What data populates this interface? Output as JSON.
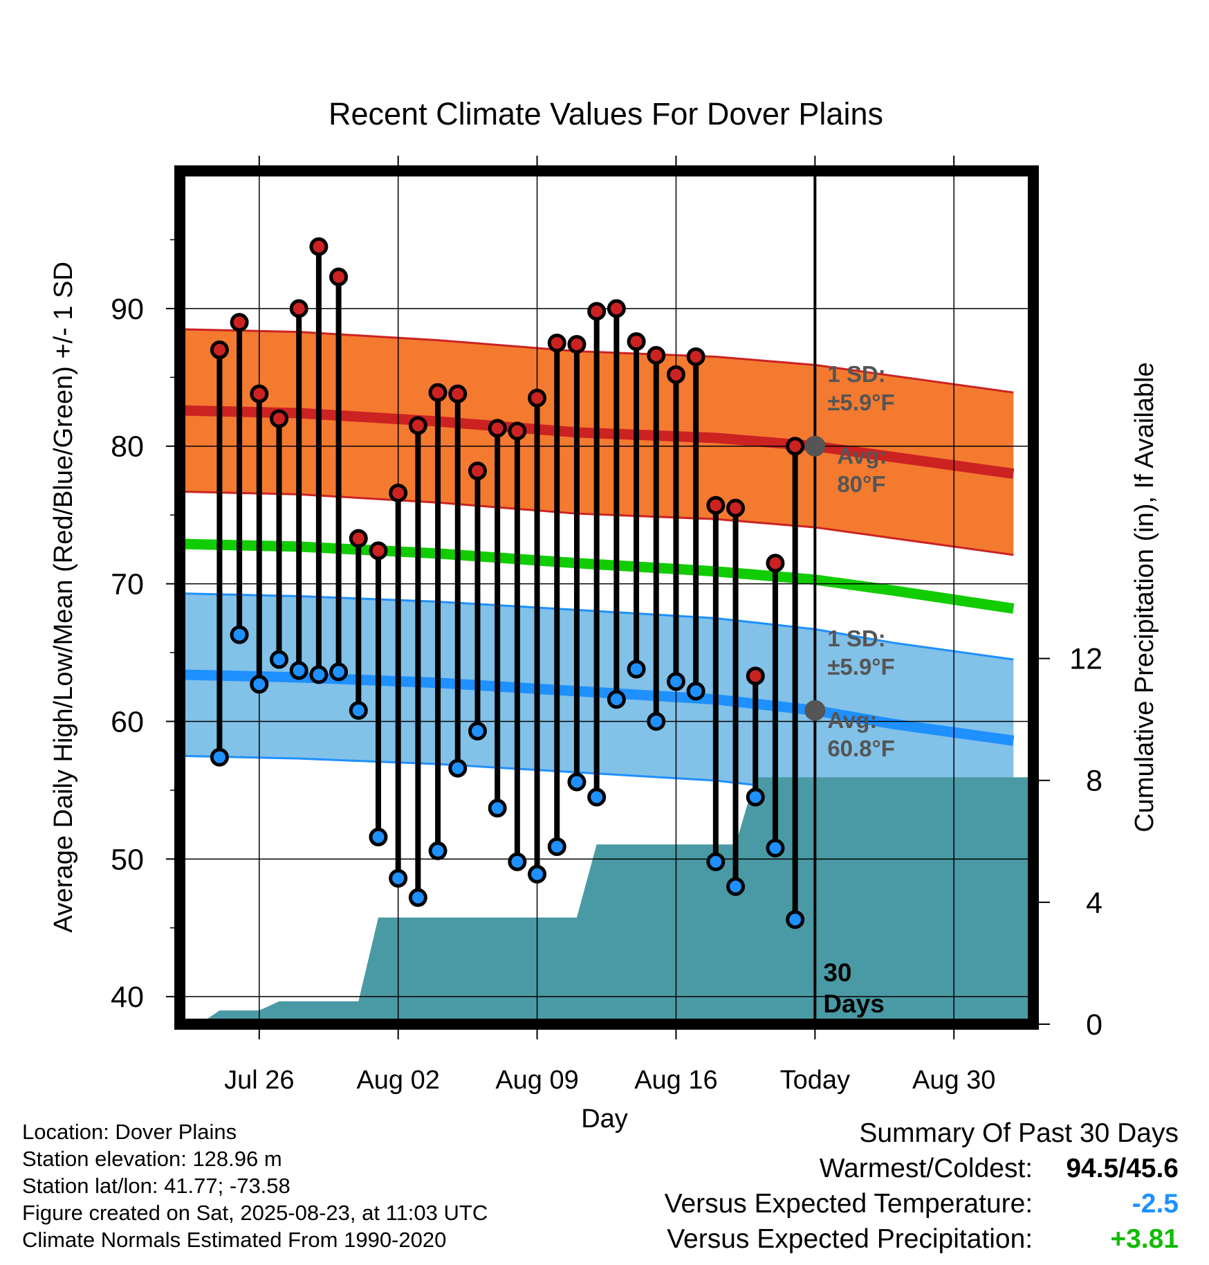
{
  "chart_data": {
    "type": "line",
    "title": "Recent Climate Values For Dover Plains",
    "xlabel": "Day",
    "ylabel": "Average Daily High/Low/Mean (Red/Blue/Green) +/- 1 SD",
    "y2label": "Cumulative Precipitation (in), If Available",
    "x_ticks": [
      "Jul 26",
      "Aug 02",
      "Aug 09",
      "Aug 16",
      "Today",
      "Aug 30"
    ],
    "x_tick_dates": [
      "2025-07-26",
      "2025-08-02",
      "2025-08-09",
      "2025-08-16",
      "2025-08-23",
      "2025-08-30"
    ],
    "x_range": [
      "2025-07-22",
      "2025-09-03"
    ],
    "ylim": [
      38,
      100
    ],
    "y_ticks": [
      40,
      50,
      60,
      70,
      80,
      90
    ],
    "y2lim": [
      0,
      28
    ],
    "y2_ticks": [
      0,
      4,
      8,
      12
    ],
    "grid": true,
    "today": "2025-08-23",
    "today_label": [
      "30",
      "Days"
    ],
    "high_sd_label": [
      "1 SD:",
      "±5.9°F"
    ],
    "high_avg_label": [
      "Avg:",
      "80°F"
    ],
    "low_sd_label": [
      "1 SD:",
      "±5.9°F"
    ],
    "low_avg_label": [
      "Avg:",
      "60.8°F"
    ],
    "normals": {
      "dates": [
        "2025-07-22",
        "2025-07-28",
        "2025-08-04",
        "2025-08-11",
        "2025-08-18",
        "2025-08-23",
        "2025-08-27",
        "2025-09-02"
      ],
      "normal_high": [
        82.6,
        82.4,
        81.8,
        81.0,
        80.6,
        80.0,
        79.2,
        78.0
      ],
      "normal_low": [
        63.4,
        63.2,
        62.8,
        62.2,
        61.6,
        60.8,
        59.8,
        58.6
      ],
      "normal_mean": [
        72.9,
        72.7,
        72.2,
        71.5,
        70.9,
        70.3,
        69.5,
        68.2
      ],
      "sd": 5.9
    },
    "series": [
      {
        "name": "Daily High",
        "color": "#cc2222",
        "dates": [
          "2025-07-24",
          "2025-07-25",
          "2025-07-26",
          "2025-07-27",
          "2025-07-28",
          "2025-07-29",
          "2025-07-30",
          "2025-07-31",
          "2025-08-01",
          "2025-08-02",
          "2025-08-03",
          "2025-08-04",
          "2025-08-05",
          "2025-08-06",
          "2025-08-07",
          "2025-08-08",
          "2025-08-09",
          "2025-08-10",
          "2025-08-11",
          "2025-08-12",
          "2025-08-13",
          "2025-08-14",
          "2025-08-15",
          "2025-08-16",
          "2025-08-17",
          "2025-08-18",
          "2025-08-19",
          "2025-08-20",
          "2025-08-21",
          "2025-08-22"
        ],
        "values": [
          87.0,
          89.0,
          83.8,
          82.0,
          90.0,
          94.5,
          92.3,
          73.3,
          72.4,
          76.6,
          81.5,
          83.9,
          83.8,
          78.2,
          81.3,
          81.1,
          83.5,
          87.5,
          87.4,
          89.8,
          90.0,
          87.6,
          86.6,
          85.2,
          86.5,
          75.7,
          75.5,
          63.3,
          71.5,
          80.0
        ]
      },
      {
        "name": "Daily Low",
        "color": "#1e90ff",
        "dates": [
          "2025-07-24",
          "2025-07-25",
          "2025-07-26",
          "2025-07-27",
          "2025-07-28",
          "2025-07-29",
          "2025-07-30",
          "2025-07-31",
          "2025-08-01",
          "2025-08-02",
          "2025-08-03",
          "2025-08-04",
          "2025-08-05",
          "2025-08-06",
          "2025-08-07",
          "2025-08-08",
          "2025-08-09",
          "2025-08-10",
          "2025-08-11",
          "2025-08-12",
          "2025-08-13",
          "2025-08-14",
          "2025-08-15",
          "2025-08-16",
          "2025-08-17",
          "2025-08-18",
          "2025-08-19",
          "2025-08-20",
          "2025-08-21",
          "2025-08-22"
        ],
        "values": [
          57.4,
          66.3,
          62.7,
          64.5,
          63.7,
          63.4,
          63.6,
          60.8,
          51.6,
          48.6,
          47.2,
          50.6,
          56.6,
          59.3,
          53.7,
          49.8,
          48.9,
          50.9,
          55.6,
          54.5,
          61.6,
          63.8,
          60.0,
          62.9,
          62.2,
          49.8,
          48.0,
          54.5,
          50.8,
          45.6
        ]
      },
      {
        "name": "Cumulative Precipitation",
        "color": "#4a9aa5",
        "dates": [
          "2025-07-23",
          "2025-07-24",
          "2025-07-25",
          "2025-07-26",
          "2025-07-27",
          "2025-07-31",
          "2025-08-01",
          "2025-08-11",
          "2025-08-12",
          "2025-08-18",
          "2025-08-19",
          "2025-08-20",
          "2025-09-03"
        ],
        "values": [
          0.0,
          0.45,
          0.45,
          0.45,
          0.75,
          0.75,
          3.5,
          3.5,
          5.9,
          5.9,
          5.9,
          8.1,
          8.1
        ]
      }
    ],
    "high_color": "#cc2222",
    "high_band_color": "#f47a30",
    "low_color": "#1e90ff",
    "low_band_color": "#82c1e8",
    "mean_color": "#11cc00",
    "precip_color": "#4a9aa5"
  },
  "metadata": {
    "location": "Location: Dover Plains",
    "elevation": "Station elevation: 128.96 m",
    "latlon": "Station lat/lon: 41.77; -73.58",
    "created": "Figure created on Sat, 2025-08-23, at 11:03 UTC",
    "normals": "Climate Normals Estimated From 1990-2020"
  },
  "summary": {
    "title": "Summary Of Past 30 Days",
    "warmest_coldest_label": "Warmest/Coldest:",
    "warmest_coldest_value": "94.5/45.6",
    "temp_label": "Versus Expected Temperature:",
    "temp_value": "-2.5",
    "temp_color": "#1e90ff",
    "precip_label": "Versus Expected Precipitation:",
    "precip_value": "+3.81",
    "precip_color": "#11bb00"
  }
}
